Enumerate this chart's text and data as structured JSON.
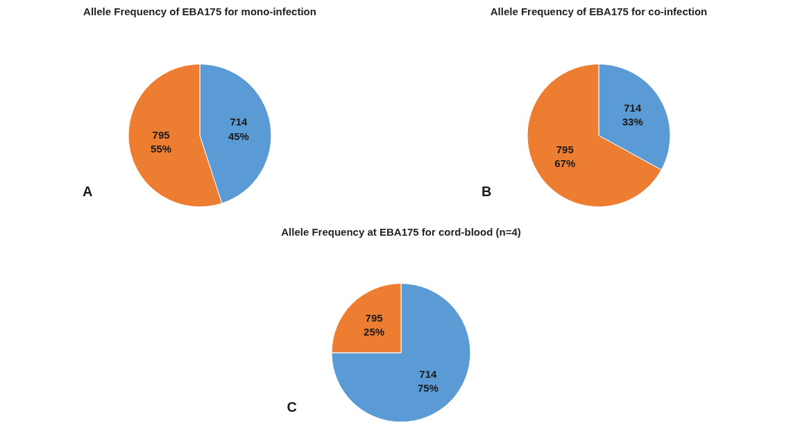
{
  "chart_data": [
    {
      "type": "pie",
      "title": "Allele Frequency of EBA175 for mono-infection",
      "categories": [
        "714",
        "795"
      ],
      "values": [
        45,
        55
      ],
      "value_labels": [
        "45%",
        "55%"
      ],
      "colors": [
        "#5b9bd5",
        "#ed7d31"
      ],
      "annotations": [
        "A"
      ]
    },
    {
      "type": "pie",
      "title": "Allele Frequency of EBA175 for co-infection",
      "categories": [
        "714",
        "795"
      ],
      "values": [
        33,
        67
      ],
      "value_labels": [
        "33%",
        "67%"
      ],
      "colors": [
        "#5b9bd5",
        "#ed7d31"
      ],
      "annotations": [
        "B"
      ]
    },
    {
      "type": "pie",
      "title": "Allele Frequency at EBA175 for cord-blood (n=4)",
      "categories": [
        "714",
        "795"
      ],
      "values": [
        75,
        25
      ],
      "value_labels": [
        "75%",
        "25%"
      ],
      "colors": [
        "#5b9bd5",
        "#ed7d31"
      ],
      "annotations": [
        "C"
      ]
    }
  ]
}
